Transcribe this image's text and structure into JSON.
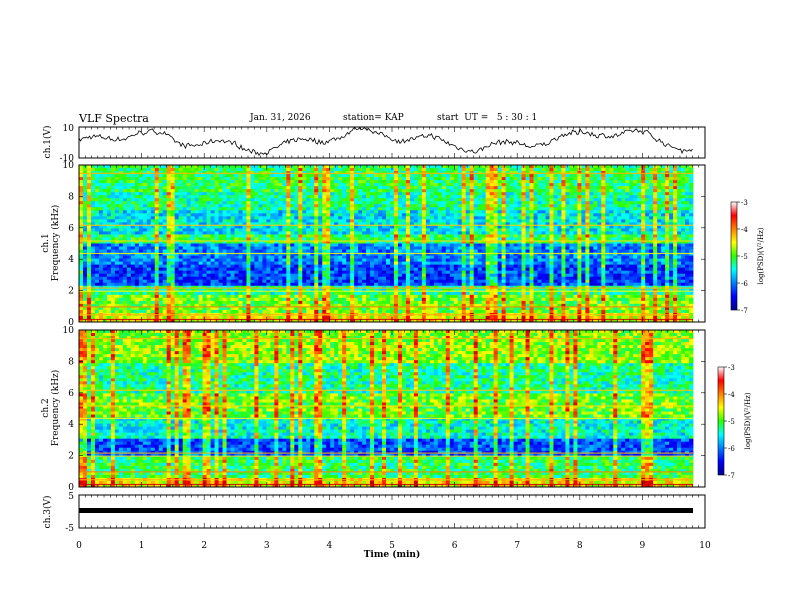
{
  "header": {
    "title": "VLF Spectra",
    "date": "Jan. 31, 2026",
    "station": "station= KAP",
    "start": "start  UT =   5 : 30 : 1"
  },
  "chart_data": [
    {
      "type": "line",
      "panel": "ch1-waveform",
      "ylabel": "ch.1(V)",
      "ylim": [
        -10,
        10
      ],
      "yticks": [
        "10",
        "-10"
      ],
      "xlim": [
        0,
        10
      ],
      "description_series": "broadband waveform amplitude, roughly between -6 and 7 V"
    },
    {
      "type": "heatmap",
      "panel": "ch1-spectrogram",
      "ylabel_line1": "ch.1",
      "ylabel_line2": "Frequency (kHz)",
      "ylim": [
        0,
        10
      ],
      "yticks": [
        "0",
        "2",
        "4",
        "6",
        "8",
        "10"
      ],
      "xlim": [
        0,
        9.85
      ],
      "colorbar": {
        "label": "log(PSD)(V²/Hz)",
        "ticks": [
          "-3",
          "-4",
          "-5",
          "-6",
          "-7"
        ],
        "range": [
          -7,
          -3
        ]
      }
    },
    {
      "type": "heatmap",
      "panel": "ch2-spectrogram",
      "ylabel_line1": "ch.2",
      "ylabel_line2": "Frequency (kHz)",
      "ylim": [
        0,
        10
      ],
      "yticks": [
        "0",
        "2",
        "4",
        "6",
        "8",
        "10"
      ],
      "xlim": [
        0,
        9.85
      ],
      "colorbar": {
        "label": "log(PSD)(V²/Hz)",
        "ticks": [
          "-3",
          "-4",
          "-5",
          "-6",
          "-7"
        ],
        "range": [
          -7,
          -3
        ]
      }
    },
    {
      "type": "line",
      "panel": "ch3-waveform",
      "ylabel": "ch.3(V)",
      "ylim": [
        -5,
        5
      ],
      "yticks": [
        "5",
        "-5"
      ],
      "xlim": [
        0,
        10
      ],
      "description_series": "near-constant band around -1.5 V"
    }
  ],
  "xaxis": {
    "label": "Time  (min)",
    "ticks": [
      "0",
      "1",
      "2",
      "3",
      "4",
      "5",
      "6",
      "7",
      "8",
      "9",
      "10"
    ]
  },
  "colors": {
    "low": "#00008f",
    "high": "#b40000"
  }
}
